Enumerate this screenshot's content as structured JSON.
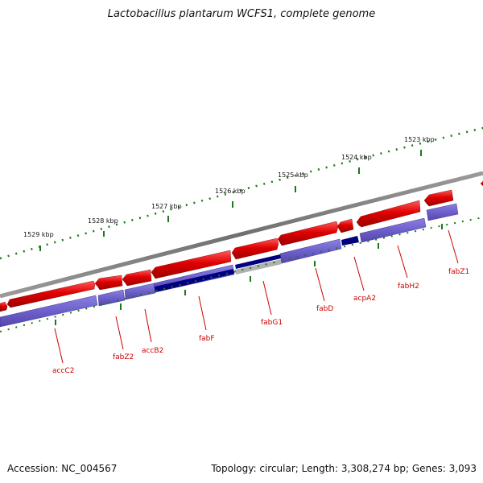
{
  "title": "Lactobacillus plantarum WCFS1, complete genome",
  "footer": {
    "accession": "Accession: NC_004567",
    "summary": "Topology: circular; Length: 3,308,274 bp; Genes: 3,093"
  },
  "scale_labels": [
    "1529 kbp",
    "1528 kbp",
    "1527 kbp",
    "1526 kbp",
    "1525 kbp",
    "1524 kbp",
    "1523 kbp"
  ],
  "gene_labels": [
    "accC2",
    "fabZ2",
    "accB2",
    "fabF",
    "fabG1",
    "fabD",
    "acpA2",
    "fabH2",
    "fabZ1"
  ],
  "colors": {
    "cds_forward": "#e00000",
    "feature_blue": "#7060d0",
    "feature_dark": "#000080",
    "backbone": "#808080",
    "ticks": "#1a7a1a",
    "label": "#cc0000"
  }
}
